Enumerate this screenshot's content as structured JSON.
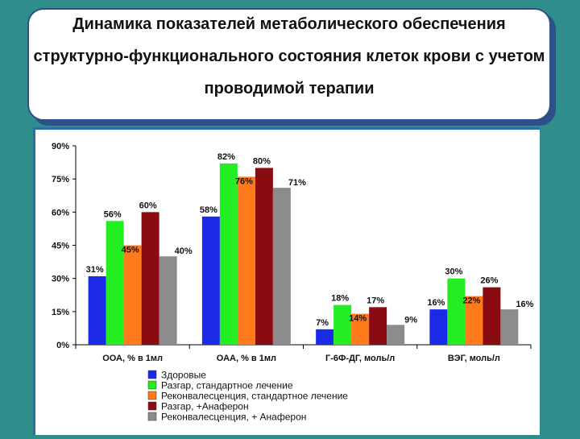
{
  "header": {
    "title": "Динамика показателей метаболического обеспечения структурно-функционального состояния клеток крови с учетом проводимой терапии"
  },
  "colors": {
    "background": "#2f8d8b",
    "panel_border": "#2f6ca8"
  },
  "chart_data": {
    "type": "bar",
    "categories": [
      "ООА, % в 1мл",
      "ОАА, % в 1мл",
      "Г-6Ф-ДГ, моль/л",
      "ВЭГ, моль/л"
    ],
    "ylim": [
      0,
      90
    ],
    "yticks": [
      {
        "value": 0,
        "label": "0%"
      },
      {
        "value": 15,
        "label": "15%"
      },
      {
        "value": 30,
        "label": "30%"
      },
      {
        "value": 45,
        "label": "45%"
      },
      {
        "value": 60,
        "label": "60%"
      },
      {
        "value": 75,
        "label": "75%"
      },
      {
        "value": 90,
        "label": "90%"
      }
    ],
    "series": [
      {
        "name": "Здоровые",
        "color": "#1a2ae6",
        "values": [
          31,
          58,
          7,
          16
        ],
        "labels": [
          "31%",
          "58%",
          "7%",
          "16%"
        ]
      },
      {
        "name": "Разгар, стандартное лечение",
        "color": "#22ee22",
        "values": [
          56,
          82,
          18,
          30
        ],
        "labels": [
          "56%",
          "82%",
          "18%",
          "30%"
        ]
      },
      {
        "name": "Реконвалесценция, стандартное лечение",
        "color": "#ff7a1a",
        "values": [
          45,
          76,
          14,
          22
        ],
        "labels": [
          "45%",
          "76%",
          "14%",
          "22%"
        ]
      },
      {
        "name": "Разгар, +Анаферон",
        "color": "#8b0c10",
        "values": [
          60,
          80,
          17,
          26
        ],
        "labels": [
          "60%",
          "80%",
          "17%",
          "26%"
        ]
      },
      {
        "name": "Реконвалесценция, + Анаферон",
        "color": "#8c8c8c",
        "values": [
          40,
          71,
          9,
          16
        ],
        "labels": [
          "40%",
          "71%",
          "9%",
          "16%"
        ]
      }
    ],
    "legend_position": "bottom",
    "grid": false
  }
}
